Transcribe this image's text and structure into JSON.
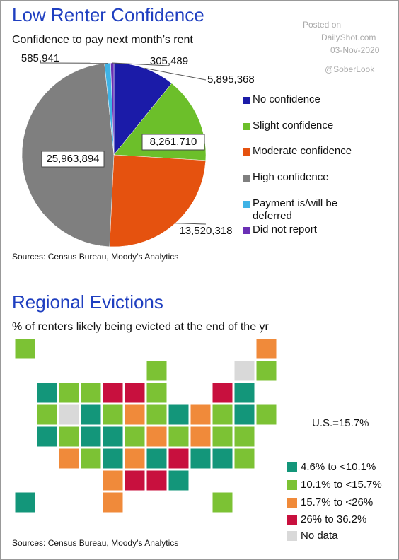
{
  "watermark": {
    "posted": "Posted on",
    "site": "DailyShot.com",
    "date": "03-Nov-2020",
    "handle": "@SoberLook"
  },
  "chart_data": [
    {
      "type": "pie",
      "title": "Low Renter Confidence",
      "subtitle": "Confidence to pay next month’s rent",
      "categories": [
        "No confidence",
        "Slight confidence",
        "Moderate confidence",
        "High confidence",
        "Payment is/will be deferred",
        "Did not report"
      ],
      "values": [
        5895368,
        8261710,
        13520318,
        25963894,
        585941,
        305489
      ],
      "value_labels": [
        "5,895,368",
        "8,261,710",
        "13,520,318",
        "25,963,894",
        "585,941",
        "305,489"
      ],
      "colors": [
        "#1b1ba8",
        "#6cbf2a",
        "#e5520f",
        "#7f7f7f",
        "#3fb3e6",
        "#6a2fb5"
      ],
      "source": "Sources: Census Bureau, Moody’s Analytics"
    },
    {
      "type": "map",
      "title": "Regional Evictions",
      "subtitle": "% of renters likely being evicted at the end of the yr",
      "annotation": "U.S.=15.7%",
      "legend": [
        {
          "name": "4.6% to <10.1%",
          "color": "#13967a"
        },
        {
          "name": "10.1%  to <15.7%",
          "color": "#7cc234"
        },
        {
          "name": "15.7% to <26%",
          "color": "#f08a3a"
        },
        {
          "name": "26% to 36.2%",
          "color": "#c8103e"
        },
        {
          "name": "No data",
          "color": "#d9d9d9"
        }
      ],
      "source": "Sources: Census Bureau, Moody’s Analytics"
    }
  ]
}
